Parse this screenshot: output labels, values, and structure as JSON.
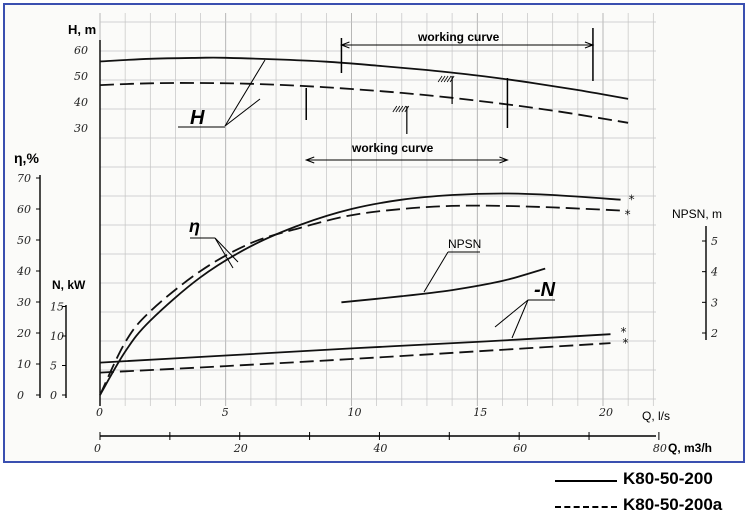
{
  "chart_data": {
    "type": "line",
    "title": "",
    "x_primary": {
      "label": "Q, l/s",
      "ticks": [
        0,
        5,
        10,
        15,
        20
      ],
      "range": [
        0,
        22
      ]
    },
    "x_secondary": {
      "label": "Q, m3/h",
      "ticks": [
        0,
        20,
        40,
        60,
        80
      ],
      "range": [
        0,
        80
      ]
    },
    "axes": {
      "H": {
        "label": "H, m",
        "ticks": [
          30,
          40,
          50,
          60
        ],
        "range": [
          25,
          60
        ]
      },
      "eta": {
        "label": "η,%",
        "ticks": [
          0,
          10,
          20,
          30,
          40,
          50,
          60,
          70
        ],
        "range": [
          0,
          70
        ]
      },
      "N": {
        "label": "N, kW",
        "ticks": [
          0,
          5,
          10,
          15
        ],
        "range": [
          0,
          15
        ]
      },
      "NPSN": {
        "label": "NPSN, m",
        "ticks": [
          2,
          3,
          4,
          5
        ],
        "range": [
          2,
          5
        ]
      }
    },
    "curve_labels": {
      "H": "H",
      "eta": "η",
      "N": "-N",
      "NPSN": "NPSN"
    },
    "working_curve_label": "working curve",
    "working_ranges": {
      "K80-50-200": [
        9.6,
        19.6
      ],
      "K80-50-200a": [
        8.2,
        16.2
      ]
    },
    "series": [
      {
        "name": "K80-50-200",
        "quantity": "H",
        "style": "solid",
        "x": [
          0,
          2,
          4,
          5,
          7,
          9,
          11,
          13,
          15,
          17,
          19,
          21
        ],
        "y": [
          55.6,
          56.6,
          57.0,
          57.0,
          56.4,
          55.5,
          54.0,
          52.3,
          50.2,
          47.6,
          44.6,
          41.2
        ]
      },
      {
        "name": "K80-50-200a",
        "quantity": "H",
        "style": "dashed",
        "x": [
          0,
          2,
          4,
          6,
          8,
          10,
          12,
          14,
          16,
          18,
          20,
          21
        ],
        "y": [
          46.5,
          47.2,
          47.3,
          47.0,
          46.2,
          45.0,
          43.5,
          41.6,
          39.3,
          36.7,
          33.6,
          32.0
        ]
      },
      {
        "name": "K80-50-200",
        "quantity": "eta",
        "style": "solid",
        "x": [
          0,
          1,
          2,
          4,
          6,
          8,
          10,
          12,
          14,
          16,
          18,
          20.7
        ],
        "y": [
          0,
          14,
          24,
          38,
          48,
          55,
          60,
          63,
          64.5,
          65,
          64.5,
          63
        ]
      },
      {
        "name": "K80-50-200a",
        "quantity": "eta",
        "style": "dashed",
        "x": [
          0,
          1,
          2,
          4,
          6,
          8,
          10,
          12,
          14,
          16,
          18,
          20.7
        ],
        "y": [
          0,
          17,
          27,
          40,
          49,
          54,
          58,
          60,
          61,
          61,
          60.5,
          59.5
        ]
      },
      {
        "name": "K80-50-200",
        "quantity": "N",
        "style": "solid",
        "x": [
          0,
          5,
          10,
          15,
          20.3
        ],
        "y": [
          5.5,
          6.7,
          7.9,
          9.0,
          10.3
        ]
      },
      {
        "name": "K80-50-200a",
        "quantity": "N",
        "style": "dashed",
        "x": [
          0,
          5,
          10,
          15,
          20.3
        ],
        "y": [
          3.8,
          4.9,
          6.1,
          7.4,
          8.8
        ]
      },
      {
        "name": "K80-50-200",
        "quantity": "NPSN",
        "style": "solid",
        "x": [
          9.6,
          12,
          14,
          16,
          17.7
        ],
        "y": [
          3.0,
          3.2,
          3.4,
          3.7,
          4.1
        ]
      }
    ]
  },
  "legend": [
    {
      "label": "K80-50-200",
      "style": "solid"
    },
    {
      "label": "K80-50-200a",
      "style": "dashed"
    }
  ]
}
